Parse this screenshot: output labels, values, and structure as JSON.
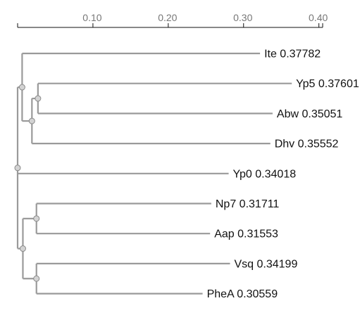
{
  "axis": {
    "ticks": [
      {
        "value": 0.1,
        "label": "0.10"
      },
      {
        "value": 0.2,
        "label": "0.20"
      },
      {
        "value": 0.3,
        "label": "0.30"
      },
      {
        "value": 0.4,
        "label": "0.40"
      }
    ],
    "min": 0,
    "max": 0.405
  },
  "colors": {
    "branch": "#9a9a9a",
    "node_fill": "#d3d3d3",
    "node_stroke": "#8a8a8a",
    "axis": "#111111",
    "tick_text": "#777777",
    "leaf_text": "#111111"
  },
  "tree": {
    "children": [
      {
        "length": 0.006,
        "children": [
          {
            "name": "Ite",
            "label": "Ite 0.37782",
            "length": 0.31582
          },
          {
            "length": 0.013,
            "children": [
              {
                "length": 0.008,
                "children": [
                  {
                    "name": "Yp5",
                    "label": "Yp5 0.37601",
                    "length": 0.33701
                  },
                  {
                    "name": "Abw",
                    "label": "Abw 0.35051",
                    "length": 0.31151
                  }
                ]
              },
              {
                "name": "Dhv",
                "label": "Dhv 0.35552",
                "length": 0.31652
              }
            ]
          }
        ]
      },
      {
        "name": "Yp0",
        "label": "Yp0 0.34018",
        "length": 0.28018
      },
      {
        "length": 0.007,
        "children": [
          {
            "length": 0.018,
            "children": [
              {
                "name": "Np7",
                "label": "Np7 0.31711",
                "length": 0.23211
              },
              {
                "name": "Aap",
                "label": "Aap 0.31553",
                "length": 0.23053
              }
            ]
          },
          {
            "length": 0.018,
            "children": [
              {
                "name": "Vsq",
                "label": "Vsq 0.34199",
                "length": 0.25699
              },
              {
                "name": "PheA",
                "label": "PheA 0.30559",
                "length": 0.22059
              }
            ]
          }
        ]
      }
    ]
  }
}
